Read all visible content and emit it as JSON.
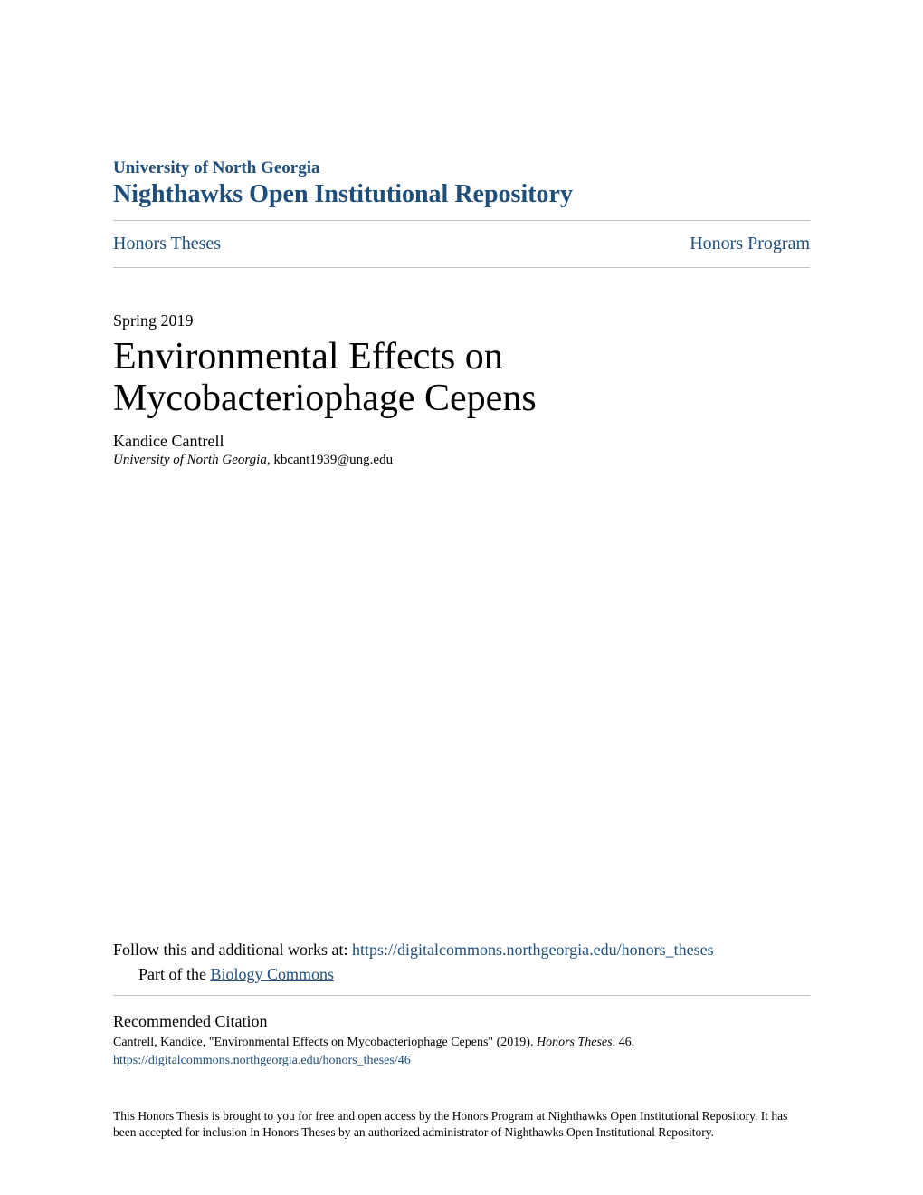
{
  "colors": {
    "primary": "#1e4e79",
    "text": "#000000",
    "rule": "#c0c0c0",
    "background": "#ffffff"
  },
  "header": {
    "university": "University of North Georgia",
    "repository": "Nighthawks Open Institutional Repository"
  },
  "breadcrumb": {
    "left": "Honors Theses",
    "right": "Honors Program"
  },
  "paper": {
    "date": "Spring 2019",
    "title": "Environmental Effects on Mycobacteriophage Cepens",
    "author_name": "Kandice Cantrell",
    "author_institution": "University of North Georgia",
    "author_email": ", kbcant1939@ung.edu"
  },
  "follow": {
    "prefix": "Follow this and additional works at: ",
    "url": "https://digitalcommons.northgeorgia.edu/honors_theses",
    "part_prefix": "Part of the ",
    "part_link": "Biology Commons"
  },
  "citation": {
    "heading": "Recommended Citation",
    "text_before_italic": "Cantrell, Kandice, \"Environmental Effects on Mycobacteriophage Cepens\" (2019). ",
    "text_italic": "Honors Theses",
    "text_after_italic": ". 46.",
    "url": "https://digitalcommons.northgeorgia.edu/honors_theses/46"
  },
  "footer": {
    "text": "This Honors Thesis is brought to you for free and open access by the Honors Program at Nighthawks Open Institutional Repository. It has been accepted for inclusion in Honors Theses by an authorized administrator of Nighthawks Open Institutional Repository."
  }
}
